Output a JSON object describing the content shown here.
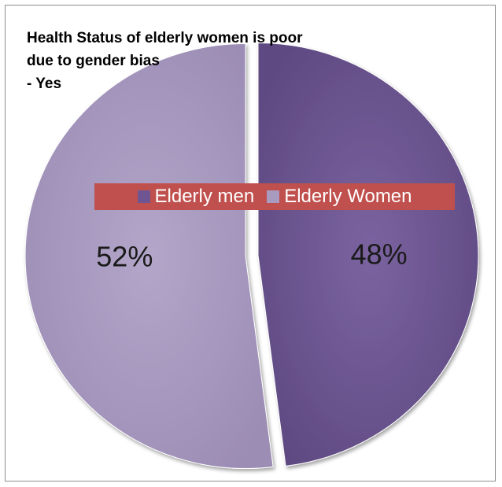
{
  "chart_data": {
    "type": "pie",
    "title_lines": [
      "Health Status of elderly women is poor",
      "due to gender bias",
      "- Yes"
    ],
    "legend_position": "center",
    "series": [
      {
        "name": "Elderly men",
        "value": 48,
        "label": "48%",
        "color": "#6f5693"
      },
      {
        "name": "Elderly Women",
        "value": 52,
        "label": "52%",
        "color": "#a99bc0"
      }
    ]
  }
}
